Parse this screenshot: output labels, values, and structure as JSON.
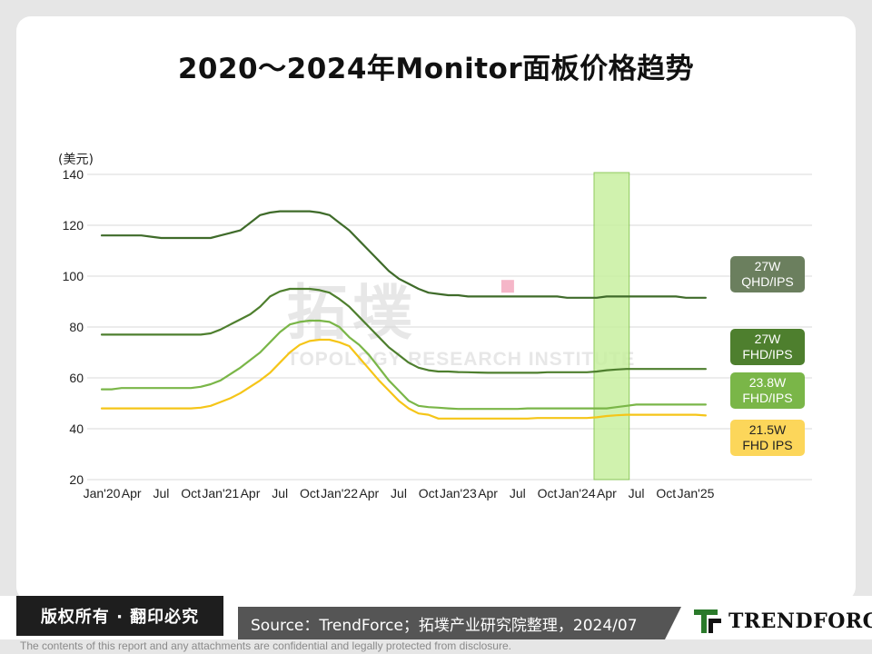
{
  "title": "2020～2024年Monitor面板价格趋势",
  "footer": {
    "copyright": "版权所有 · 翻印必究",
    "source": "Source：TrendForce；拓墣产业研究院整理，2024/07",
    "logo_text": "TRENDFORCE",
    "disclaimer": "The contents of this report and any attachments are confidential and legally protected from disclosure."
  },
  "watermark": {
    "cn": "拓墣",
    "en": "TOPOLOGY RESEARCH INSTITUTE"
  },
  "colors": {
    "qhd27": "#3f6b2a",
    "fhd27": "#4e7f2e",
    "fhd238": "#7ab648",
    "fhd215": "#f5c518",
    "highlight_fill": "#c8f0a0",
    "highlight_stroke": "#7cc142",
    "label_qhd27": "#6b7f5e",
    "label_fhd27": "#4e7f2e",
    "label_fhd238": "#7ab648",
    "label_fhd215": "#fcd65a",
    "marker": "#f5b6c8",
    "grid": "#d9d9d9"
  },
  "chart_data": {
    "type": "line",
    "ylabel": "(美元)",
    "ylim": [
      20,
      140
    ],
    "yticks": [
      20,
      40,
      60,
      80,
      100,
      120,
      140
    ],
    "x": [
      "Jan'20",
      "Feb'20",
      "Mar'20",
      "Apr'20",
      "May'20",
      "Jun'20",
      "Jul'20",
      "Aug'20",
      "Sep'20",
      "Oct'20",
      "Nov'20",
      "Dec'20",
      "Jan'21",
      "Feb'21",
      "Mar'21",
      "Apr'21",
      "May'21",
      "Jun'21",
      "Jul'21",
      "Aug'21",
      "Sep'21",
      "Oct'21",
      "Nov'21",
      "Dec'21",
      "Jan'22",
      "Feb'22",
      "Mar'22",
      "Apr'22",
      "May'22",
      "Jun'22",
      "Jul'22",
      "Aug'22",
      "Sep'22",
      "Oct'22",
      "Nov'22",
      "Dec'22",
      "Jan'23",
      "Feb'23",
      "Mar'23",
      "Apr'23",
      "May'23",
      "Jun'23",
      "Jul'23",
      "Aug'23",
      "Sep'23",
      "Oct'23",
      "Nov'23",
      "Dec'23",
      "Jan'24",
      "Feb'24",
      "Mar'24",
      "Apr'24",
      "May'24",
      "Jun'24",
      "Jul'24",
      "Aug'24",
      "Sep'24",
      "Oct'24",
      "Nov'24",
      "Dec'24",
      "Jan'25",
      "Feb'25"
    ],
    "tick_labels": [
      {
        "i": 0,
        "label": "Jan'20"
      },
      {
        "i": 3,
        "label": "Apr"
      },
      {
        "i": 6,
        "label": "Jul"
      },
      {
        "i": 9,
        "label": "Oct"
      },
      {
        "i": 12,
        "label": "Jan'21"
      },
      {
        "i": 15,
        "label": "Apr"
      },
      {
        "i": 18,
        "label": "Jul"
      },
      {
        "i": 21,
        "label": "Oct"
      },
      {
        "i": 24,
        "label": "Jan'22"
      },
      {
        "i": 27,
        "label": "Apr"
      },
      {
        "i": 30,
        "label": "Jul"
      },
      {
        "i": 33,
        "label": "Oct"
      },
      {
        "i": 36,
        "label": "Jan'23"
      },
      {
        "i": 39,
        "label": "Apr"
      },
      {
        "i": 42,
        "label": "Jul"
      },
      {
        "i": 45,
        "label": "Oct"
      },
      {
        "i": 48,
        "label": "Jan'24"
      },
      {
        "i": 51,
        "label": "Apr"
      },
      {
        "i": 54,
        "label": "Jul"
      },
      {
        "i": 57,
        "label": "Oct"
      },
      {
        "i": 60,
        "label": "Jan'25"
      }
    ],
    "highlight_range": [
      "Mar'24",
      "Jun'24"
    ],
    "marker_x": "Jun'23",
    "marker_y": 96,
    "series": [
      {
        "name": "27W QHD/IPS",
        "label_lines": [
          "27W",
          "QHD/IPS"
        ],
        "color_key": "qhd27",
        "values": [
          116,
          116,
          116,
          116,
          116,
          115.5,
          115,
          115,
          115,
          115,
          115,
          115,
          116,
          117,
          118,
          121,
          124,
          125,
          125.5,
          125.5,
          125.5,
          125.5,
          125,
          124,
          121,
          118,
          114,
          110,
          106,
          102,
          99,
          97,
          95,
          93.5,
          93,
          92.5,
          92.5,
          92,
          92,
          92,
          92,
          92,
          92,
          92,
          92,
          92,
          92,
          91.5,
          91.5,
          91.5,
          91.5,
          92,
          92,
          92,
          92,
          92,
          92,
          92,
          92,
          91.5,
          91.5,
          91.5
        ]
      },
      {
        "name": "27W FHD/IPS",
        "label_lines": [
          "27W",
          "FHD/IPS"
        ],
        "color_key": "fhd27",
        "values": [
          77,
          77,
          77,
          77,
          77,
          77,
          77,
          77,
          77,
          77,
          77,
          77.5,
          79,
          81,
          83,
          85,
          88,
          92,
          94,
          95,
          95,
          95,
          94.5,
          93.5,
          91,
          88,
          84,
          80,
          76,
          72,
          69,
          66,
          64,
          63,
          62.5,
          62.5,
          62.3,
          62.2,
          62.1,
          62,
          62,
          62,
          62,
          62,
          62,
          62.2,
          62.2,
          62.2,
          62.2,
          62.2,
          62.5,
          63,
          63.3,
          63.5,
          63.5,
          63.5,
          63.5,
          63.5,
          63.5,
          63.5,
          63.5,
          63.5
        ]
      },
      {
        "name": "23.8W FHD/IPS",
        "label_lines": [
          "23.8W",
          "FHD/IPS"
        ],
        "color_key": "fhd238",
        "values": [
          55.5,
          55.5,
          56,
          56,
          56,
          56,
          56,
          56,
          56,
          56,
          56.5,
          57.5,
          59,
          61.5,
          64,
          67,
          70,
          74,
          78,
          81,
          82,
          82.5,
          82.5,
          82,
          80,
          76,
          73,
          69,
          64,
          59,
          55,
          51,
          49,
          48.5,
          48.3,
          48,
          47.8,
          47.8,
          47.8,
          47.8,
          47.8,
          47.8,
          47.8,
          48,
          48,
          48,
          48,
          48,
          48,
          48,
          48,
          48,
          48.5,
          49,
          49.5,
          49.5,
          49.5,
          49.5,
          49.5,
          49.5,
          49.5,
          49.5
        ]
      },
      {
        "name": "21.5W FHD IPS",
        "label_lines": [
          "21.5W",
          "FHD IPS"
        ],
        "color_key": "fhd215",
        "values": [
          48,
          48,
          48,
          48,
          48,
          48,
          48,
          48,
          48,
          48,
          48.3,
          49,
          50.5,
          52,
          54,
          56.5,
          59,
          62,
          66,
          70,
          73,
          74.5,
          75,
          75,
          74,
          72.5,
          68,
          63.5,
          59,
          55,
          51,
          48,
          46,
          45.5,
          44,
          44,
          44,
          44,
          44,
          44,
          44,
          44,
          44,
          44,
          44.2,
          44.2,
          44.2,
          44.2,
          44.2,
          44.2,
          44.5,
          45,
          45.3,
          45.5,
          45.5,
          45.5,
          45.5,
          45.5,
          45.5,
          45.5,
          45.5,
          45.2
        ]
      }
    ]
  }
}
